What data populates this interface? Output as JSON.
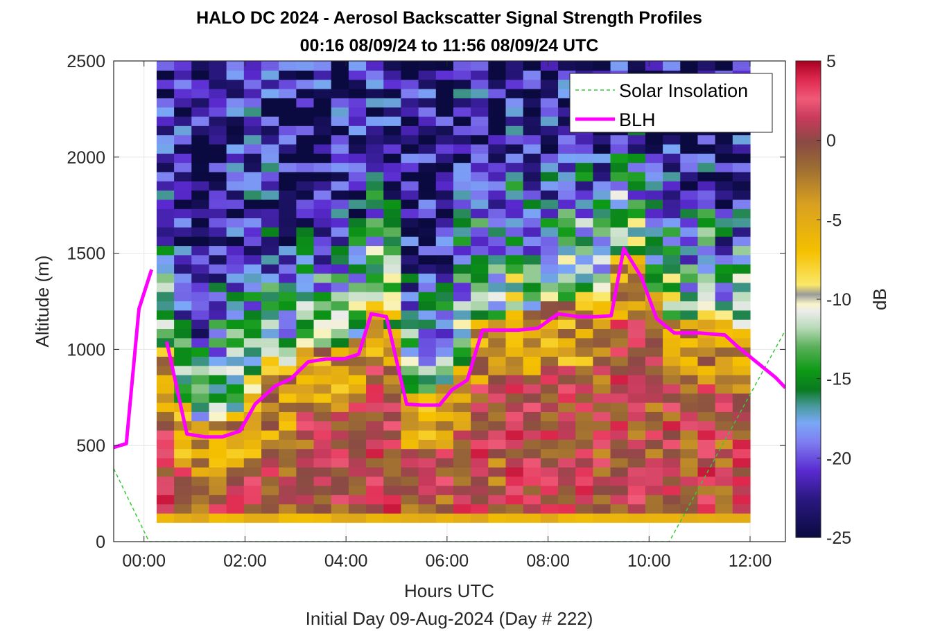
{
  "chart_data": {
    "type": "heatmap",
    "title": "HALO DC 2024 - Aerosol Backscatter Signal Strength Profiles",
    "subtitle": "00:16 08/09/24 to 11:56 08/09/24  UTC",
    "xlabel": "Hours UTC",
    "footer": "Initial Day 09-Aug-2024 (Day # 222)",
    "ylabel": "Altitude (m)",
    "colorbar_label": "dB",
    "xlim": [
      -0.6,
      12.7
    ],
    "ylim": [
      0,
      2500
    ],
    "x_ticks": [
      "00:00",
      "02:00",
      "04:00",
      "06:00",
      "08:00",
      "10:00",
      "12:00"
    ],
    "x_tick_values": [
      0,
      2,
      4,
      6,
      8,
      10,
      12
    ],
    "y_ticks": [
      "0",
      "500",
      "1000",
      "1500",
      "2000",
      "2500"
    ],
    "y_tick_values": [
      0,
      500,
      1000,
      1500,
      2000,
      2500
    ],
    "clim": [
      -25,
      5
    ],
    "colorbar_ticks": [
      "5",
      "0",
      "-5",
      "-10",
      "-15",
      "-20",
      "-25"
    ],
    "colorbar_tick_values": [
      5,
      0,
      -5,
      -10,
      -15,
      -20,
      -25
    ],
    "grid": true,
    "legend_position": "top-right",
    "heatmap": {
      "x_start": 0.25,
      "x_end": 12.0,
      "y_start": 100,
      "y_end": 2500,
      "columns": 34,
      "rows": 50
    },
    "series": [
      {
        "name": "Solar Insolation",
        "style": "dashed",
        "color": "#33cc33",
        "x": [
          -0.6,
          0.1,
          10.4,
          12.7
        ],
        "y": [
          380,
          0,
          0,
          1100
        ]
      },
      {
        "name": "BLH",
        "style": "solid",
        "color": "#ff00ff",
        "segments": [
          {
            "x": [
              -0.6,
              -0.35,
              -0.1,
              0.15
            ],
            "y": [
              490,
              510,
              1210,
              1415
            ]
          },
          {
            "x": [
              0.45,
              0.85,
              1.2,
              1.55,
              1.9,
              2.2,
              2.6,
              2.9,
              3.25,
              3.6,
              3.95,
              4.25,
              4.5,
              4.8,
              5.2,
              5.5,
              5.85,
              6.1,
              6.4,
              6.7,
              7.0,
              7.4,
              7.8,
              8.2,
              8.6,
              8.95,
              9.25,
              9.5,
              9.85,
              10.15,
              10.5,
              11.0,
              11.5,
              11.75,
              12.1,
              12.5,
              12.7
            ],
            "y": [
              1040,
              560,
              545,
              545,
              575,
              715,
              810,
              845,
              935,
              950,
              950,
              975,
              1185,
              1170,
              715,
              710,
              710,
              790,
              840,
              1100,
              1100,
              1100,
              1110,
              1185,
              1170,
              1170,
              1175,
              1525,
              1375,
              1160,
              1085,
              1085,
              1075,
              1015,
              940,
              855,
              800
            ]
          }
        ]
      }
    ]
  }
}
